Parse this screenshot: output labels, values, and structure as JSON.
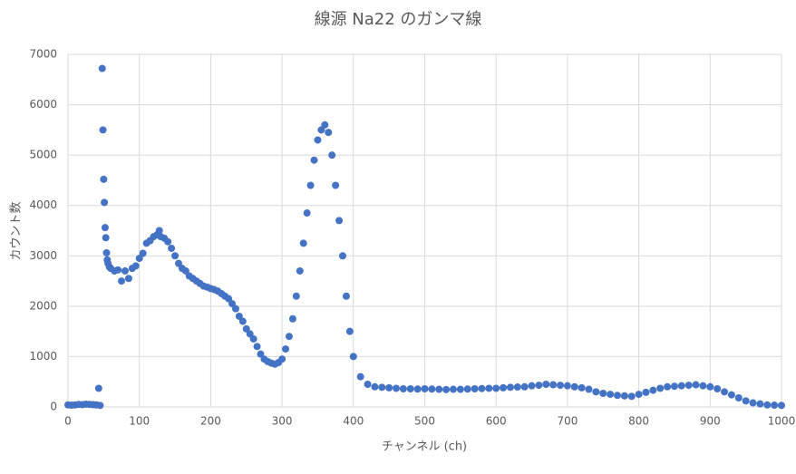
{
  "chart_data": {
    "type": "scatter",
    "title": "線源 Na22 のガンマ線",
    "x_label": "チャンネル (ch)",
    "y_label": "カウント数",
    "xlim": [
      0,
      1000
    ],
    "ylim": [
      0,
      7000
    ],
    "xticks": [
      0,
      100,
      200,
      300,
      400,
      500,
      600,
      700,
      800,
      900,
      1000
    ],
    "yticks": [
      0,
      1000,
      2000,
      3000,
      4000,
      5000,
      6000,
      7000
    ],
    "grid": true,
    "color": "#4472c4",
    "x": [
      0,
      5,
      10,
      15,
      20,
      25,
      30,
      35,
      40,
      43,
      45,
      48,
      49,
      50,
      51,
      52,
      53,
      54,
      55,
      56,
      58,
      60,
      65,
      70,
      75,
      80,
      85,
      90,
      95,
      100,
      105,
      110,
      115,
      120,
      125,
      128,
      130,
      135,
      140,
      145,
      150,
      155,
      160,
      165,
      170,
      175,
      180,
      185,
      190,
      195,
      200,
      205,
      210,
      215,
      220,
      225,
      230,
      235,
      240,
      245,
      250,
      255,
      260,
      265,
      270,
      275,
      280,
      285,
      290,
      295,
      300,
      305,
      310,
      315,
      320,
      325,
      330,
      335,
      340,
      345,
      350,
      355,
      360,
      365,
      370,
      375,
      380,
      385,
      390,
      395,
      400,
      410,
      420,
      430,
      440,
      450,
      460,
      470,
      480,
      490,
      500,
      510,
      520,
      530,
      540,
      550,
      560,
      570,
      580,
      590,
      600,
      610,
      620,
      630,
      640,
      650,
      660,
      670,
      680,
      690,
      700,
      710,
      720,
      730,
      740,
      750,
      760,
      770,
      780,
      790,
      800,
      810,
      820,
      830,
      840,
      850,
      860,
      870,
      880,
      890,
      900,
      910,
      920,
      930,
      940,
      950,
      960,
      970,
      980,
      990,
      1000
    ],
    "values": [
      40,
      35,
      40,
      50,
      45,
      55,
      50,
      45,
      40,
      370,
      30,
      6720,
      5500,
      4520,
      4060,
      3560,
      3360,
      3060,
      2920,
      2850,
      2780,
      2750,
      2700,
      2720,
      2500,
      2700,
      2550,
      2750,
      2800,
      2950,
      3050,
      3250,
      3300,
      3380,
      3420,
      3500,
      3380,
      3350,
      3280,
      3150,
      3000,
      2850,
      2750,
      2700,
      2600,
      2550,
      2500,
      2450,
      2400,
      2380,
      2350,
      2330,
      2300,
      2250,
      2200,
      2150,
      2050,
      1950,
      1800,
      1700,
      1550,
      1450,
      1350,
      1200,
      1050,
      950,
      900,
      870,
      850,
      880,
      950,
      1150,
      1400,
      1750,
      2200,
      2700,
      3250,
      3850,
      4400,
      4900,
      5300,
      5500,
      5600,
      5450,
      5000,
      4400,
      3700,
      3000,
      2200,
      1500,
      1000,
      600,
      450,
      400,
      390,
      380,
      370,
      360,
      360,
      355,
      360,
      355,
      350,
      345,
      350,
      350,
      355,
      360,
      365,
      370,
      370,
      380,
      390,
      395,
      400,
      420,
      430,
      450,
      440,
      430,
      420,
      400,
      380,
      350,
      300,
      270,
      250,
      230,
      220,
      210,
      250,
      290,
      330,
      370,
      400,
      410,
      420,
      430,
      440,
      420,
      400,
      360,
      300,
      240,
      180,
      120,
      80,
      60,
      40,
      35,
      30
    ]
  }
}
